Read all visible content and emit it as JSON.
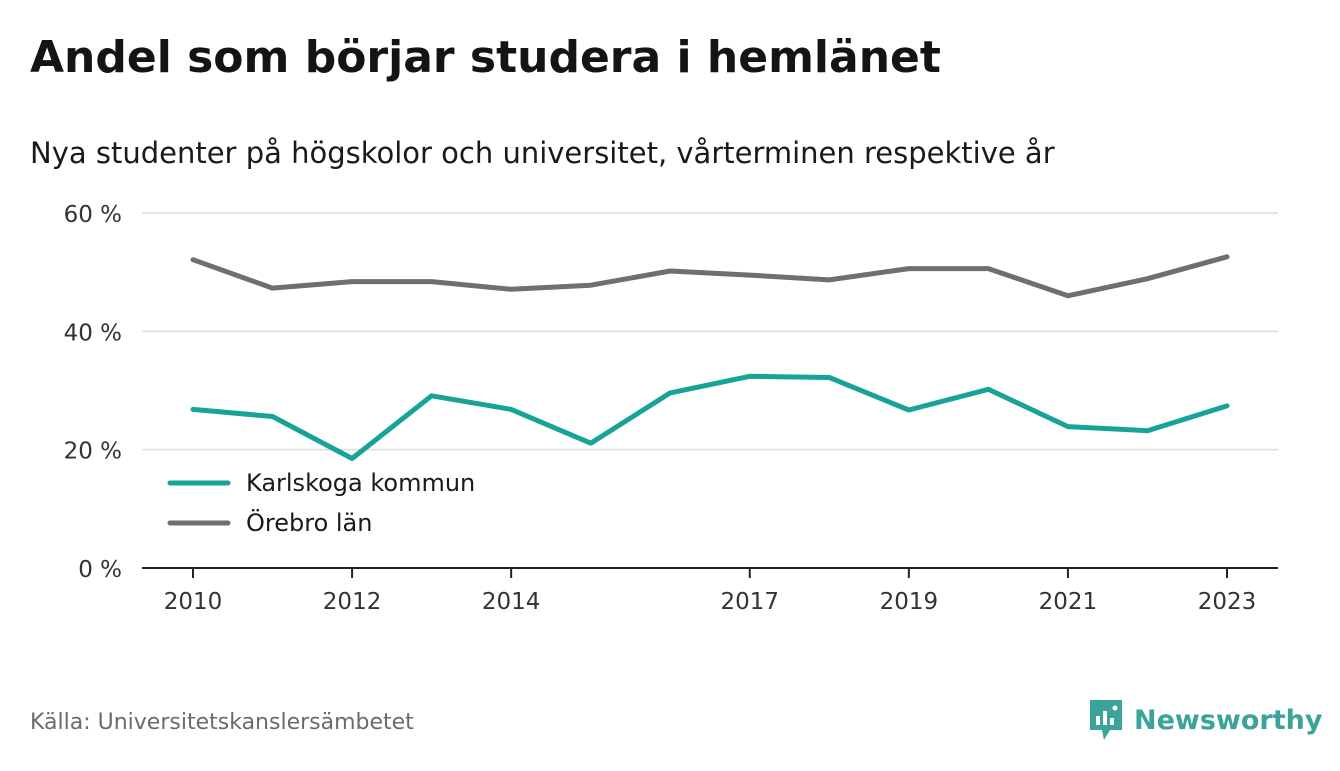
{
  "title": "Andel som börjar studera i hemlänet",
  "subtitle": "Nya studenter på högskolor och universitet, vårterminen respektive år",
  "source": "Källa: Universitetskanslersämbetet",
  "logo_text": "Newsworthy",
  "colors": {
    "karlskoga": "#18a399",
    "orebro": "#6e6e73",
    "grid": "#dcdcdc",
    "axis": "#222222",
    "tick_text": "#333333",
    "logo": "#3aa39a"
  },
  "chart_data": {
    "type": "line",
    "x": [
      2010,
      2011,
      2012,
      2013,
      2014,
      2015,
      2016,
      2017,
      2018,
      2019,
      2020,
      2021,
      2022,
      2023
    ],
    "x_tick_labels": [
      "2010",
      "2012",
      "2014",
      "2017",
      "2019",
      "2021",
      "2023"
    ],
    "y_tick_labels": [
      "0 %",
      "20 %",
      "40 %",
      "60 %"
    ],
    "ylim": [
      0,
      60
    ],
    "grid": true,
    "legend_position": "bottom-left",
    "series": [
      {
        "name": "Karlskoga kommun",
        "color": "#18a399",
        "values": [
          26.8,
          25.6,
          18.5,
          29.1,
          26.8,
          21.1,
          29.6,
          32.4,
          32.2,
          26.7,
          30.2,
          23.9,
          23.2,
          27.4
        ]
      },
      {
        "name": "Örebro län",
        "color": "#6e6e73",
        "values": [
          52.1,
          47.3,
          48.4,
          48.4,
          47.1,
          47.8,
          50.2,
          49.5,
          48.7,
          50.6,
          50.6,
          46.0,
          48.9,
          52.6
        ]
      }
    ]
  }
}
